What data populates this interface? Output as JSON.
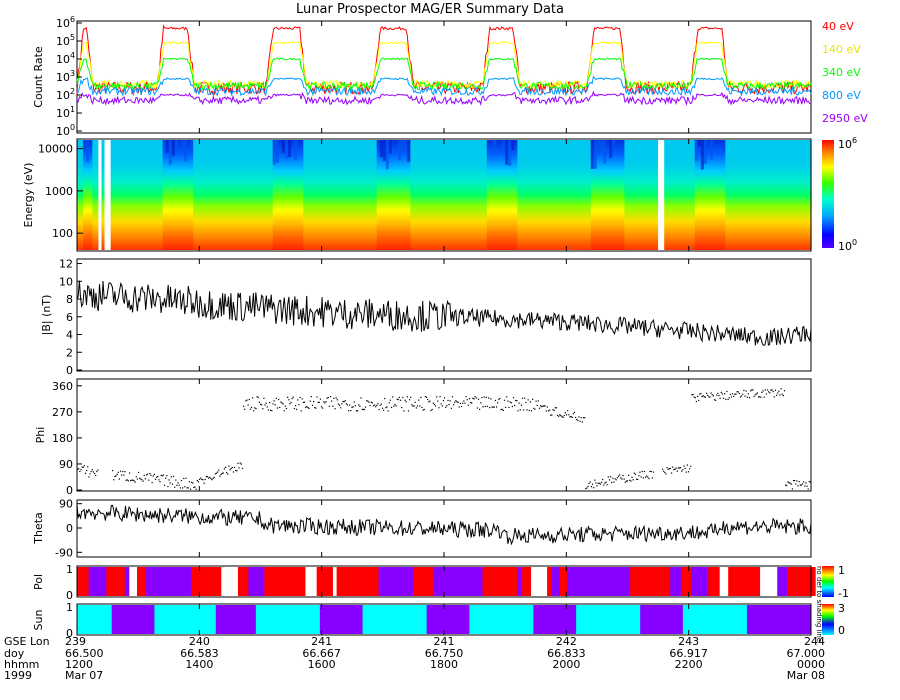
{
  "chart_data": [
    {
      "type": "line",
      "panel": "count-rate",
      "title": "Lunar Prospector MAG/ER Summary Data",
      "ylabel": "Count Rate",
      "yscale": "log",
      "ylim_exp": [
        0,
        6
      ],
      "ytick_exps": [
        "0",
        "1",
        "2",
        "3",
        "4",
        "5",
        "6"
      ],
      "series": [
        {
          "name": "40 eV",
          "color": "#ff0000",
          "high": 5.7,
          "low": 2.4
        },
        {
          "name": "140 eV",
          "color": "#ffff00",
          "high": 4.9,
          "low": 2.6
        },
        {
          "name": "340 eV",
          "color": "#00ff00",
          "high": 4.0,
          "low": 2.5
        },
        {
          "name": "800 eV",
          "color": "#0099ff",
          "high": 2.9,
          "low": 2.2
        },
        {
          "name": "2950 eV",
          "color": "#9900ff",
          "high": 2.0,
          "low": 1.7
        }
      ],
      "dayside_intervals": [
        [
          0.0,
          0.06
        ],
        [
          0.3,
          0.44
        ],
        [
          0.71,
          0.86
        ],
        [
          1.11,
          1.26
        ],
        [
          1.52,
          1.66
        ],
        [
          1.91,
          2.06
        ],
        [
          2.3,
          2.44
        ]
      ]
    },
    {
      "type": "heatmap",
      "panel": "energy-spectrogram",
      "ylabel": "Energy (eV)",
      "yscale": "log",
      "ylim": [
        40,
        16000
      ],
      "yticks": [
        "100",
        "1000",
        "10000"
      ],
      "colorbar": {
        "min_label": "0",
        "max_label": "6",
        "base": "10"
      },
      "gap_intervals": [
        [
          0.07,
          0.09
        ],
        [
          0.1,
          0.12
        ],
        [
          2.17,
          2.19
        ]
      ]
    },
    {
      "type": "line",
      "panel": "b-magnitude",
      "ylabel": "|B| (nT)",
      "ylim": [
        0,
        12.4
      ],
      "yticks": [
        "0",
        "2",
        "4",
        "6",
        "8",
        "10",
        "12"
      ],
      "trend": [
        [
          0,
          8.6
        ],
        [
          0.3,
          8.0
        ],
        [
          0.6,
          7.2
        ],
        [
          1.0,
          6.4
        ],
        [
          1.4,
          6.0
        ],
        [
          1.8,
          5.5
        ],
        [
          2.2,
          4.6
        ],
        [
          2.6,
          3.6
        ],
        [
          2.75,
          4.2
        ]
      ]
    },
    {
      "type": "scatter",
      "panel": "phi",
      "ylabel": "Phi",
      "ylim": [
        0,
        380
      ],
      "yticks": [
        "0",
        "90",
        "180",
        "270",
        "360"
      ]
    },
    {
      "type": "line",
      "panel": "theta",
      "ylabel": "Theta",
      "ylim": [
        -100,
        100
      ],
      "yticks": [
        "-90",
        "0",
        "90"
      ]
    },
    {
      "type": "heatmap",
      "panel": "polarity",
      "ylabel": "Pol",
      "yticks": [
        "0",
        "1"
      ],
      "colorbar": {
        "max_label": "1",
        "min_label": "-1"
      },
      "vertical_note": "no def to shading line"
    },
    {
      "type": "heatmap",
      "panel": "sun",
      "ylabel": "Sun",
      "yticks": [
        "0",
        "1"
      ],
      "colorbar": {
        "max_label": "3",
        "min_label": "0"
      },
      "sunlit_intervals": [
        [
          0.0,
          0.13
        ],
        [
          0.29,
          0.52
        ],
        [
          0.67,
          0.91
        ],
        [
          1.07,
          1.31
        ],
        [
          1.47,
          1.71
        ],
        [
          1.87,
          2.11
        ],
        [
          2.27,
          2.51
        ]
      ]
    }
  ],
  "footer": {
    "row_labels": [
      "GSE Lon",
      "doy",
      "hhmm",
      "1999"
    ],
    "columns": [
      {
        "lon": "239",
        "doy": "66.500",
        "hhmm": "1200",
        "date": "Mar 07"
      },
      {
        "lon": "240",
        "doy": "66.583",
        "hhmm": "1400",
        "date": ""
      },
      {
        "lon": "241",
        "doy": "66.667",
        "hhmm": "1600",
        "date": ""
      },
      {
        "lon": "241",
        "doy": "66.750",
        "hhmm": "1800",
        "date": ""
      },
      {
        "lon": "242",
        "doy": "66.833",
        "hhmm": "2000",
        "date": ""
      },
      {
        "lon": "243",
        "doy": "66.917",
        "hhmm": "2200",
        "date": ""
      },
      {
        "lon": "244",
        "doy": "67.000",
        "hhmm": "0000",
        "date": "Mar 08"
      }
    ]
  }
}
